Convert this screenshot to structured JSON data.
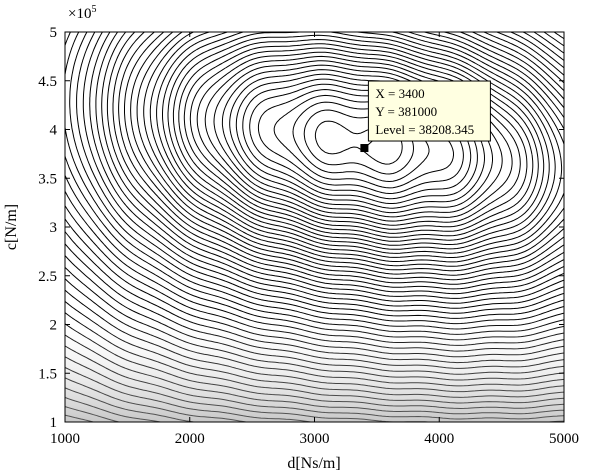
{
  "chart_data": {
    "type": "contour",
    "title": "",
    "xlabel": "d[Ns/m]",
    "ylabel": "c[N/m]",
    "xlim": [
      1000,
      5000
    ],
    "ylim": [
      100000,
      500000
    ],
    "y_exponent_label": "×10",
    "y_exponent_power": "5",
    "x_ticks": [
      "1000",
      "2000",
      "3000",
      "4000",
      "5000"
    ],
    "y_ticks": [
      "1",
      "1.5",
      "2",
      "2.5",
      "3",
      "3.5",
      "4",
      "4.5",
      "5"
    ],
    "x_tick_values": [
      1000,
      2000,
      3000,
      4000,
      5000
    ],
    "y_tick_values": [
      100000,
      150000,
      200000,
      250000,
      300000,
      350000,
      400000,
      450000,
      500000
    ],
    "grid": false,
    "marker": {
      "x": 3400,
      "y": 381000,
      "level": 38208.345
    },
    "datatip": {
      "x_text": "X = 3400",
      "y_text": "Y = 381000",
      "level_text": "Level = 38208.345"
    },
    "line_color": "#000000",
    "background": "#ffffff",
    "datatip_fill": "#ffffe1"
  }
}
